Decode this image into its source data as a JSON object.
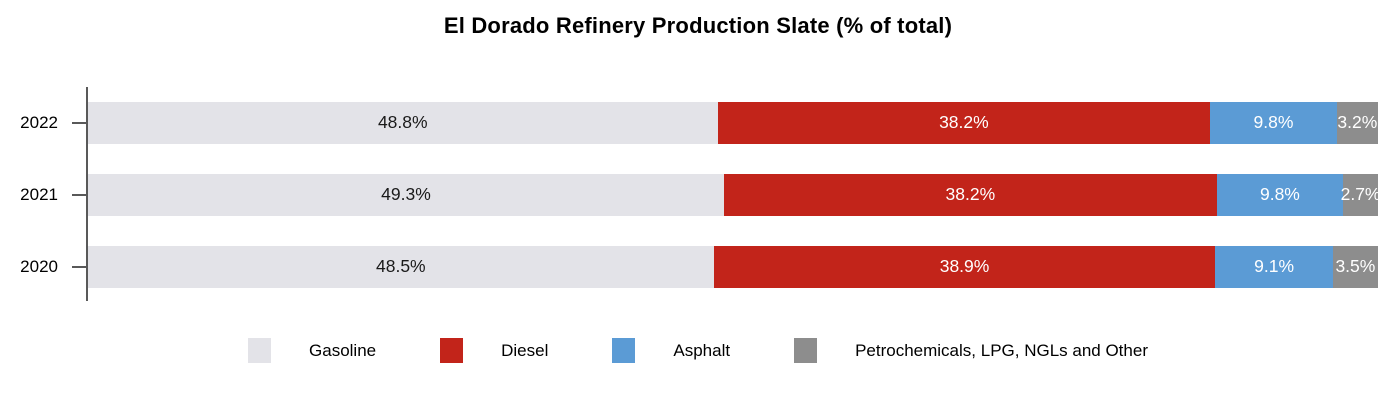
{
  "chart_data": {
    "type": "bar",
    "orientation": "horizontal",
    "stacked": true,
    "title": "El Dorado Refinery Production Slate (% of total)",
    "categories": [
      "2022",
      "2021",
      "2020"
    ],
    "series": [
      {
        "name": "Gasoline",
        "color": "#e3e3e8",
        "label_color": "#1a1a1a",
        "values": [
          48.8,
          49.3,
          48.5
        ]
      },
      {
        "name": "Diesel",
        "color": "#c2241a",
        "label_color": "#ffffff",
        "values": [
          38.2,
          38.2,
          38.9
        ]
      },
      {
        "name": "Asphalt",
        "color": "#5b9bd5",
        "label_color": "#ffffff",
        "values": [
          9.8,
          9.8,
          9.1
        ]
      },
      {
        "name": "Petrochemicals, LPG, NGLs and Other",
        "color": "#8d8d8d",
        "label_color": "#ffffff",
        "values": [
          3.2,
          2.7,
          3.5
        ]
      }
    ],
    "value_suffix": "%",
    "xlim": [
      0,
      100
    ],
    "grid": false,
    "legend_position": "bottom",
    "axis_color": "#595959"
  }
}
